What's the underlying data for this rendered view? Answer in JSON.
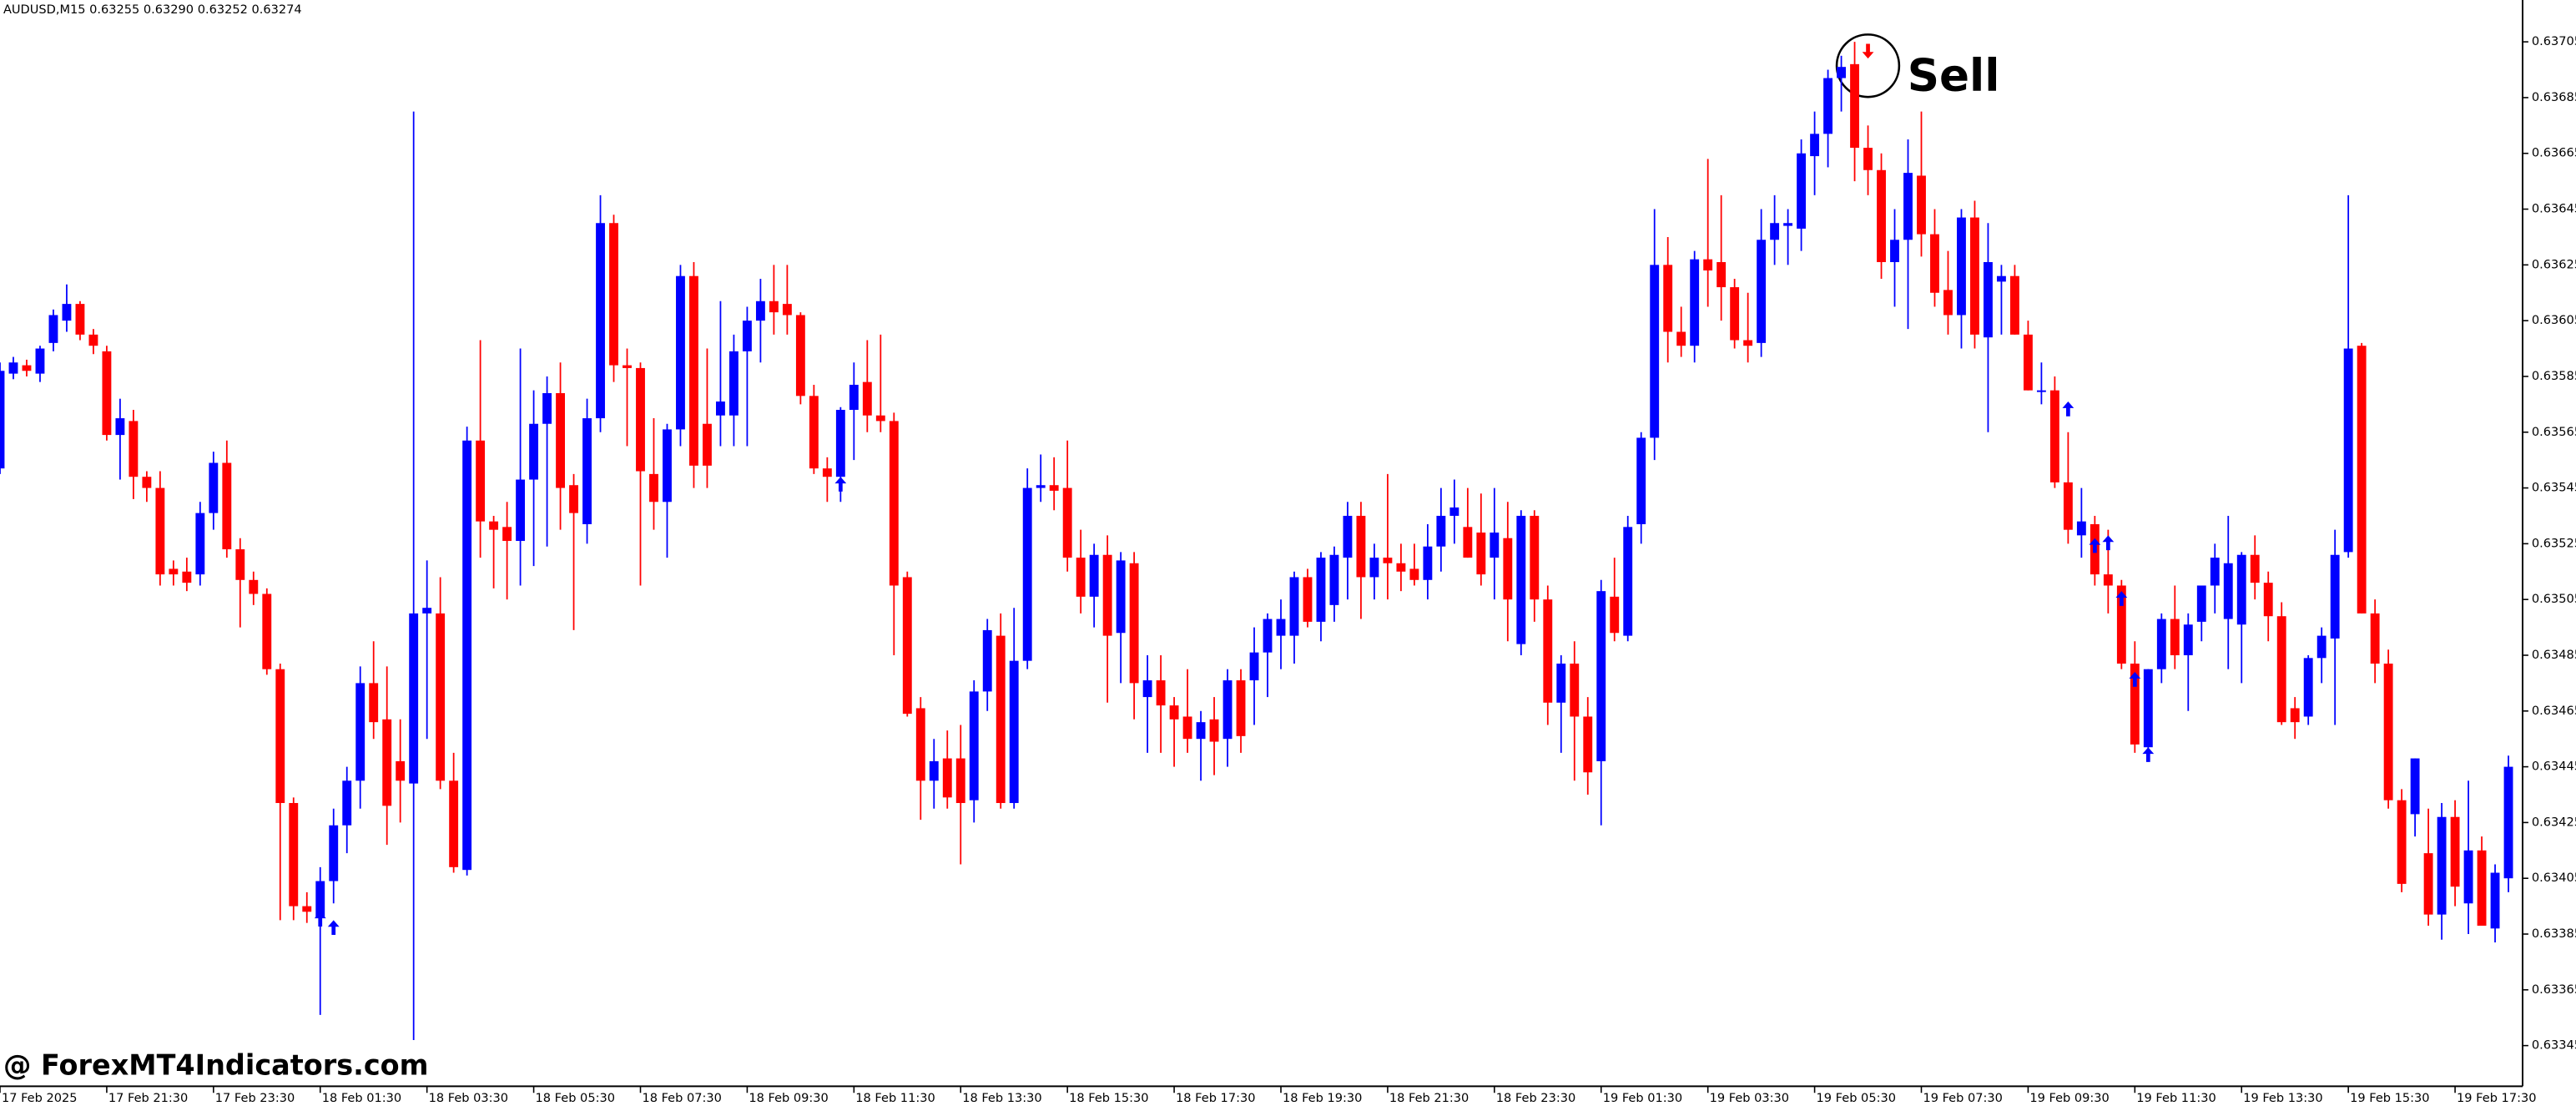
{
  "title": "AUDUSD,M15  0.63255 0.63290 0.63252 0.63274",
  "watermark": "@ ForexMT4Indicators.com",
  "annotation": "Sell",
  "chart_data": {
    "type": "candlestick",
    "up_color": "#0000ff",
    "down_color": "#ff0000",
    "open": [
      0.63552,
      0.63586,
      0.63589,
      0.63586,
      0.63597,
      0.63605,
      0.63611,
      0.636,
      0.63594,
      0.63564,
      0.63569,
      0.63549,
      0.63545,
      0.63516,
      0.63515,
      0.63514,
      0.63536,
      0.63554,
      0.63523,
      0.63512,
      0.63507,
      0.6348,
      0.63432,
      0.63395,
      0.63391,
      0.63404,
      0.63424,
      0.6344,
      0.63475,
      0.63462,
      0.63447,
      0.63439,
      0.635,
      0.635,
      0.6344,
      0.63408,
      0.63562,
      0.63533,
      0.63531,
      0.63526,
      0.63548,
      0.63568,
      0.63579,
      0.63546,
      0.63532,
      0.6357,
      0.6364,
      0.63589,
      0.63588,
      0.6355,
      0.6354,
      0.63566,
      0.63621,
      0.63568,
      0.63571,
      0.63571,
      0.63594,
      0.63605,
      0.63612,
      0.63611,
      0.63607,
      0.63578,
      0.63552,
      0.63549,
      0.63573,
      0.63583,
      0.63571,
      0.63569,
      0.63513,
      0.63466,
      0.6344,
      0.63448,
      0.63448,
      0.63433,
      0.63472,
      0.63492,
      0.63432,
      0.63483,
      0.63545,
      0.63546,
      0.63545,
      0.6352,
      0.63506,
      0.63521,
      0.63493,
      0.63518,
      0.6347,
      0.63476,
      0.63467,
      0.63463,
      0.63455,
      0.63462,
      0.63455,
      0.63476,
      0.63476,
      0.63486,
      0.63492,
      0.63492,
      0.63513,
      0.63497,
      0.63503,
      0.6352,
      0.63535,
      0.63513,
      0.6352,
      0.63518,
      0.63516,
      0.63512,
      0.63524,
      0.63535,
      0.63531,
      0.63529,
      0.6352,
      0.63527,
      0.63489,
      0.63535,
      0.63505,
      0.63468,
      0.63482,
      0.63463,
      0.63447,
      0.63506,
      0.63492,
      0.63532,
      0.63563,
      0.63625,
      0.63601,
      0.63596,
      0.63627,
      0.63626,
      0.63617,
      0.63598,
      0.63597,
      0.63634,
      0.63639,
      0.63638,
      0.63664,
      0.63672,
      0.63692,
      0.63697,
      0.63667,
      0.63659,
      0.63626,
      0.63634,
      0.63657,
      0.63636,
      0.63616,
      0.63607,
      0.63642,
      0.63599,
      0.63619,
      0.63621,
      0.636,
      0.6358,
      0.6358,
      0.63547,
      0.63528,
      0.63532,
      0.63514,
      0.6351,
      0.63482,
      0.63452,
      0.6348,
      0.63498,
      0.63485,
      0.63497,
      0.6351,
      0.63498,
      0.63496,
      0.63521,
      0.63511,
      0.63499,
      0.63466,
      0.63463,
      0.63484,
      0.63491,
      0.63522,
      0.63596,
      0.635,
      0.63482,
      0.63433,
      0.63428,
      0.63414,
      0.63392,
      0.63427,
      0.63396,
      0.63415,
      0.63387,
      0.63405
    ],
    "high": [
      0.6359,
      0.63592,
      0.63591,
      0.63596,
      0.63609,
      0.63618,
      0.63612,
      0.63602,
      0.63596,
      0.63577,
      0.63573,
      0.63551,
      0.63551,
      0.63519,
      0.6352,
      0.6354,
      0.63558,
      0.63562,
      0.63527,
      0.63515,
      0.63509,
      0.63482,
      0.63434,
      0.634,
      0.63409,
      0.6343,
      0.63445,
      0.63481,
      0.6349,
      0.63481,
      0.63462,
      0.6368,
      0.63519,
      0.63513,
      0.6345,
      0.63567,
      0.63598,
      0.63535,
      0.6354,
      0.63595,
      0.6358,
      0.63585,
      0.6359,
      0.6355,
      0.63577,
      0.6365,
      0.63643,
      0.63595,
      0.6359,
      0.6357,
      0.63568,
      0.63625,
      0.63626,
      0.63595,
      0.63612,
      0.636,
      0.6361,
      0.6362,
      0.63625,
      0.63625,
      0.63608,
      0.63582,
      0.63556,
      0.63574,
      0.6359,
      0.63598,
      0.636,
      0.63572,
      0.63515,
      0.6347,
      0.63455,
      0.63458,
      0.6346,
      0.63476,
      0.63498,
      0.635,
      0.63502,
      0.63552,
      0.63557,
      0.63556,
      0.63562,
      0.6353,
      0.63525,
      0.63528,
      0.63522,
      0.63522,
      0.63485,
      0.63485,
      0.6347,
      0.6348,
      0.63465,
      0.6347,
      0.6348,
      0.6348,
      0.63495,
      0.635,
      0.63505,
      0.63515,
      0.63516,
      0.63522,
      0.63524,
      0.6354,
      0.6354,
      0.63525,
      0.6355,
      0.63525,
      0.63525,
      0.63532,
      0.63545,
      0.63548,
      0.63545,
      0.63543,
      0.63545,
      0.6354,
      0.63537,
      0.63537,
      0.6351,
      0.63485,
      0.6349,
      0.6347,
      0.63512,
      0.6352,
      0.63535,
      0.63565,
      0.63645,
      0.63635,
      0.6361,
      0.6363,
      0.63663,
      0.6365,
      0.6362,
      0.63615,
      0.63645,
      0.6365,
      0.63645,
      0.6367,
      0.6368,
      0.63695,
      0.637,
      0.63705,
      0.63675,
      0.63665,
      0.63645,
      0.6367,
      0.6368,
      0.63645,
      0.6363,
      0.63645,
      0.63648,
      0.6364,
      0.63625,
      0.63625,
      0.63605,
      0.6359,
      0.63585,
      0.63565,
      0.63545,
      0.63535,
      0.6353,
      0.63512,
      0.6349,
      0.6348,
      0.635,
      0.6351,
      0.635,
      0.6351,
      0.63525,
      0.63535,
      0.63522,
      0.63528,
      0.63515,
      0.63504,
      0.6347,
      0.63485,
      0.63495,
      0.6353,
      0.6365,
      0.63597,
      0.63505,
      0.63487,
      0.63437,
      0.63448,
      0.6343,
      0.63432,
      0.63433,
      0.6344,
      0.6342,
      0.6341,
      0.63449
    ],
    "low": [
      0.6355,
      0.63584,
      0.63585,
      0.63583,
      0.63594,
      0.63601,
      0.63598,
      0.63593,
      0.63562,
      0.63548,
      0.63541,
      0.6354,
      0.6351,
      0.6351,
      0.63508,
      0.6351,
      0.6353,
      0.6352,
      0.63495,
      0.63503,
      0.63478,
      0.6339,
      0.6339,
      0.63389,
      0.63356,
      0.63396,
      0.63414,
      0.6343,
      0.63455,
      0.63417,
      0.63425,
      0.63347,
      0.63455,
      0.63437,
      0.63407,
      0.63406,
      0.6352,
      0.63509,
      0.63505,
      0.6351,
      0.63517,
      0.63524,
      0.6353,
      0.63494,
      0.63525,
      0.63565,
      0.63583,
      0.6356,
      0.6351,
      0.6353,
      0.6352,
      0.6356,
      0.63545,
      0.63545,
      0.6356,
      0.6356,
      0.6356,
      0.6359,
      0.636,
      0.636,
      0.63575,
      0.6355,
      0.6354,
      0.6354,
      0.63555,
      0.63565,
      0.63565,
      0.63485,
      0.63463,
      0.63426,
      0.6343,
      0.6343,
      0.6341,
      0.63425,
      0.63465,
      0.6343,
      0.6343,
      0.6348,
      0.6354,
      0.63537,
      0.63515,
      0.635,
      0.63495,
      0.63468,
      0.63475,
      0.63462,
      0.6345,
      0.6345,
      0.63445,
      0.6345,
      0.6344,
      0.63442,
      0.63445,
      0.6345,
      0.6346,
      0.6347,
      0.6348,
      0.63482,
      0.63495,
      0.6349,
      0.63497,
      0.63505,
      0.63498,
      0.63505,
      0.63505,
      0.63508,
      0.6351,
      0.63505,
      0.63515,
      0.63525,
      0.6352,
      0.6351,
      0.63505,
      0.6349,
      0.63485,
      0.63497,
      0.6346,
      0.6345,
      0.6344,
      0.63435,
      0.63424,
      0.6349,
      0.6349,
      0.63525,
      0.63555,
      0.6359,
      0.63592,
      0.6359,
      0.6361,
      0.63605,
      0.63595,
      0.6359,
      0.63592,
      0.63625,
      0.63625,
      0.6363,
      0.6365,
      0.6366,
      0.6368,
      0.63655,
      0.6365,
      0.6362,
      0.6361,
      0.63602,
      0.63628,
      0.6361,
      0.636,
      0.63595,
      0.63595,
      0.63565,
      0.636,
      0.636,
      0.6358,
      0.63575,
      0.63545,
      0.63525,
      0.6352,
      0.6351,
      0.635,
      0.6348,
      0.6345,
      0.6345,
      0.63475,
      0.6348,
      0.63465,
      0.6349,
      0.635,
      0.6348,
      0.63475,
      0.63505,
      0.6349,
      0.6346,
      0.63455,
      0.6346,
      0.63475,
      0.6346,
      0.6352,
      0.635,
      0.63475,
      0.6343,
      0.634,
      0.6342,
      0.63388,
      0.63383,
      0.63395,
      0.63385,
      0.63388,
      0.63382,
      0.634
    ],
    "close": [
      0.63587,
      0.6359,
      0.63587,
      0.63595,
      0.63607,
      0.63611,
      0.636,
      0.63596,
      0.63564,
      0.6357,
      0.63549,
      0.63545,
      0.63514,
      0.63514,
      0.63511,
      0.63536,
      0.63554,
      0.63523,
      0.63512,
      0.63507,
      0.6348,
      0.63432,
      0.63395,
      0.63393,
      0.63404,
      0.63424,
      0.6344,
      0.63475,
      0.63461,
      0.63431,
      0.6344,
      0.635,
      0.63502,
      0.6344,
      0.63409,
      0.63562,
      0.63533,
      0.6353,
      0.63526,
      0.63548,
      0.63568,
      0.63579,
      0.63545,
      0.63536,
      0.6357,
      0.6364,
      0.63589,
      0.63588,
      0.63551,
      0.6354,
      0.63566,
      0.63621,
      0.63553,
      0.63553,
      0.63576,
      0.63594,
      0.63605,
      0.63612,
      0.63608,
      0.63607,
      0.63578,
      0.63552,
      0.63549,
      0.63573,
      0.63582,
      0.63571,
      0.63569,
      0.6351,
      0.63464,
      0.6344,
      0.63447,
      0.63434,
      0.63432,
      0.63472,
      0.63494,
      0.63432,
      0.63483,
      0.63545,
      0.63546,
      0.63544,
      0.6352,
      0.63506,
      0.63521,
      0.63492,
      0.63519,
      0.63475,
      0.63476,
      0.63467,
      0.63462,
      0.63455,
      0.63461,
      0.63454,
      0.63476,
      0.63456,
      0.63486,
      0.63498,
      0.63498,
      0.63513,
      0.63497,
      0.6352,
      0.63521,
      0.63535,
      0.63513,
      0.6352,
      0.63518,
      0.63515,
      0.63512,
      0.63524,
      0.63535,
      0.63538,
      0.6352,
      0.63514,
      0.63529,
      0.63505,
      0.63535,
      0.63505,
      0.63468,
      0.63482,
      0.63463,
      0.63443,
      0.63508,
      0.63493,
      0.63531,
      0.63563,
      0.63625,
      0.63601,
      0.63596,
      0.63627,
      0.63623,
      0.63617,
      0.63598,
      0.63596,
      0.63634,
      0.6364,
      0.6364,
      0.63665,
      0.63672,
      0.63692,
      0.63696,
      0.63667,
      0.63659,
      0.63626,
      0.63634,
      0.63658,
      0.63636,
      0.63615,
      0.63607,
      0.63642,
      0.636,
      0.63626,
      0.63621,
      0.636,
      0.6358,
      0.6358,
      0.63547,
      0.6353,
      0.63533,
      0.63514,
      0.6351,
      0.63482,
      0.63453,
      0.6348,
      0.63498,
      0.63485,
      0.63496,
      0.6351,
      0.6352,
      0.63518,
      0.63521,
      0.63511,
      0.63499,
      0.63461,
      0.63461,
      0.63484,
      0.63492,
      0.63521,
      0.63595,
      0.635,
      0.63482,
      0.63433,
      0.63403,
      0.63448,
      0.63392,
      0.63427,
      0.63402,
      0.63415,
      0.63388,
      0.63407,
      0.63445
    ],
    "buy_signals": {
      "color": "#0000ff",
      "x": [
        24,
        25,
        63,
        155,
        157,
        158,
        159,
        160,
        161
      ],
      "y": [
        0.63393,
        0.6339,
        0.63549,
        0.63576,
        0.63527,
        0.63528,
        0.63508,
        0.63479,
        0.63452
      ]
    },
    "sell_signals": {
      "color": "#ff0000",
      "x": [
        140
      ],
      "y": [
        0.63699
      ]
    },
    "xlim": [
      0,
      189
    ],
    "xticks": [
      {
        "value": 0,
        "label": "17 Feb 2025"
      },
      {
        "value": 8,
        "label": "17 Feb 21:30"
      },
      {
        "value": 16,
        "label": "17 Feb 23:30"
      },
      {
        "value": 24,
        "label": "18 Feb 01:30"
      },
      {
        "value": 32,
        "label": "18 Feb 03:30"
      },
      {
        "value": 40,
        "label": "18 Feb 05:30"
      },
      {
        "value": 48,
        "label": "18 Feb 07:30"
      },
      {
        "value": 56,
        "label": "18 Feb 09:30"
      },
      {
        "value": 64,
        "label": "18 Feb 11:30"
      },
      {
        "value": 72,
        "label": "18 Feb 13:30"
      },
      {
        "value": 80,
        "label": "18 Feb 15:30"
      },
      {
        "value": 88,
        "label": "18 Feb 17:30"
      },
      {
        "value": 96,
        "label": "18 Feb 19:30"
      },
      {
        "value": 104,
        "label": "18 Feb 21:30"
      },
      {
        "value": 112,
        "label": "18 Feb 23:30"
      },
      {
        "value": 120,
        "label": "19 Feb 01:30"
      },
      {
        "value": 128,
        "label": "19 Feb 03:30"
      },
      {
        "value": 136,
        "label": "19 Feb 05:30"
      },
      {
        "value": 144,
        "label": "19 Feb 07:30"
      },
      {
        "value": 152,
        "label": "19 Feb 09:30"
      },
      {
        "value": 160,
        "label": "19 Feb 11:30"
      },
      {
        "value": 168,
        "label": "19 Feb 13:30"
      },
      {
        "value": 176,
        "label": "19 Feb 15:30"
      },
      {
        "value": 184,
        "label": "19 Feb 17:30"
      }
    ],
    "ylim": [
      0.63331,
      0.6372
    ],
    "yticks": [
      0.63705,
      0.63685,
      0.63665,
      0.63645,
      0.63625,
      0.63605,
      0.63585,
      0.63565,
      0.63545,
      0.63525,
      0.63505,
      0.63485,
      0.63465,
      0.63445,
      0.63425,
      0.63405,
      0.63385,
      0.63365,
      0.63345
    ],
    "grid": false
  }
}
